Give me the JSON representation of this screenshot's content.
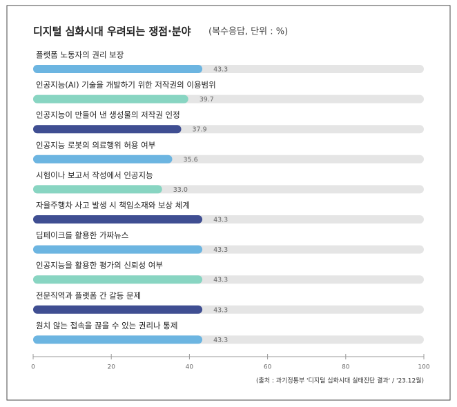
{
  "chart_data": {
    "type": "barh",
    "title": "디지털 심화시대 우려되는 쟁점·분야",
    "subtitle": "(복수응답, 단위 : %)",
    "categories": [
      "플랫폼 노동자의 권리 보장",
      "인공지능(AI) 기술을 개발하기 위한 저작권의 이용범위",
      "인공지능이 만들어 낸 생성물의 저작권 인정",
      "인공지능 로봇의 의료행위 허용 여부",
      "시험이나 보고서 작성에서 인공지능",
      "자율주행차 사고 발생 시 책임소재와 보상 체계",
      "딥페이크를 활용한 가짜뉴스",
      "인공지능을 활용한 평가의 신뢰성 여부",
      "전문직역과 플랫폼 간 갈등 문제",
      "원치 않는 접속을 끊을 수 있는 권리나 통제"
    ],
    "values": [
      43.3,
      39.7,
      37.9,
      35.6,
      33.0,
      43.3,
      43.3,
      43.3,
      43.3,
      43.3
    ],
    "value_labels": [
      "43.3",
      "39.7",
      "37.9",
      "35.6",
      "33.0",
      "43.3",
      "43.3",
      "43.3",
      "43.3",
      "43.3"
    ],
    "colors": [
      "#6cb5e1",
      "#88d5c2",
      "#3f4e92",
      "#6cb5e1",
      "#88d5c2",
      "#3f4e92",
      "#6cb5e1",
      "#88d5c2",
      "#3f4e92",
      "#6cb5e1"
    ],
    "xlim": [
      0,
      100
    ],
    "xticks": [
      0,
      20,
      40,
      60,
      80,
      100
    ],
    "source": "(출처 : 과기정통부 '디지털 심화시대 실태진단 결과' / '23.12월)"
  }
}
